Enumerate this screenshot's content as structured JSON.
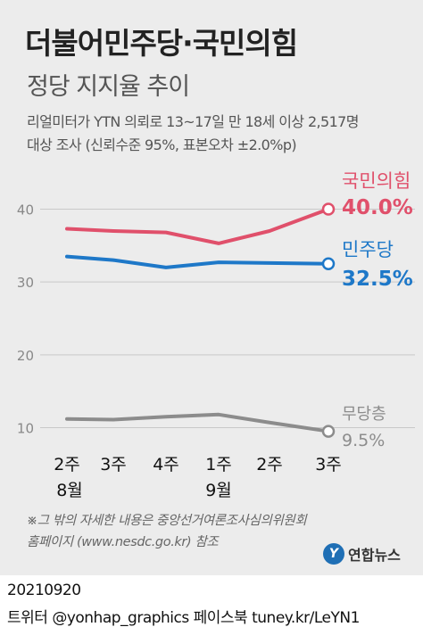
{
  "title": "더불어민주당·국민의힘",
  "subtitle": "정당 지지율 추이",
  "source_lines": [
    "리얼미터가 YTN 의뢰로 13~17일 만 18세 이상 2,517명",
    "대상 조사 (신뢰수준 95%, 표본오차 ±2.0%p)"
  ],
  "footnote_lines": [
    "※그 밖의 자세한 내용은 중앙선거여론조사심의위원회",
    "홈페이지 (www.nesdc.go.kr) 참조"
  ],
  "logo": {
    "mark": "Y",
    "text": "연합뉴스",
    "icon": "yonhap-logo-icon",
    "color": "#1f6fb5"
  },
  "date_code": "20210920",
  "social": "트위터 @yonhap_graphics  페이스북 tuney.kr/LeYN1",
  "chart_data": {
    "type": "line",
    "categories": [
      "2주",
      "3주",
      "4주",
      "1주",
      "2주",
      "3주"
    ],
    "month_labels": [
      {
        "label": "8월",
        "from": 0,
        "to": 2
      },
      {
        "label": "9월",
        "from": 3,
        "to": 5
      }
    ],
    "ylim": [
      7,
      43
    ],
    "yticks": [
      10,
      20,
      30,
      40
    ],
    "grid": true,
    "series": [
      {
        "name": "국민의힘",
        "values": [
          37.3,
          37.0,
          36.8,
          35.3,
          37.0,
          40.0
        ],
        "color": "#e0506b",
        "last_label": "40.0%",
        "bold": true
      },
      {
        "name": "민주당",
        "values": [
          33.5,
          33.0,
          32.0,
          32.7,
          32.6,
          32.5
        ],
        "color": "#1e78c8",
        "last_label": "32.5%",
        "bold": true
      },
      {
        "name": "무당층",
        "values": [
          11.2,
          11.1,
          11.5,
          11.8,
          10.7,
          9.5
        ],
        "color": "#8c8c8c",
        "last_label": "9.5%",
        "bold": false
      }
    ]
  }
}
